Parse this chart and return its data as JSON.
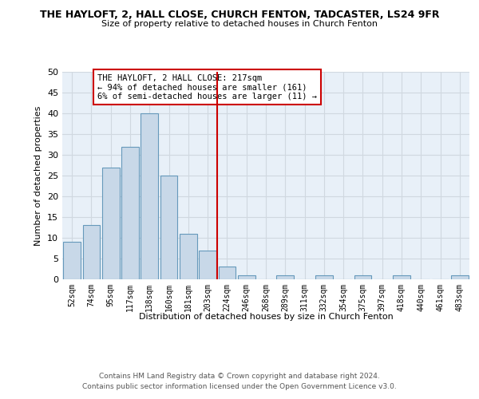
{
  "title": "THE HAYLOFT, 2, HALL CLOSE, CHURCH FENTON, TADCASTER, LS24 9FR",
  "subtitle": "Size of property relative to detached houses in Church Fenton",
  "xlabel": "Distribution of detached houses by size in Church Fenton",
  "ylabel": "Number of detached properties",
  "bar_labels": [
    "52sqm",
    "74sqm",
    "95sqm",
    "117sqm",
    "138sqm",
    "160sqm",
    "181sqm",
    "203sqm",
    "224sqm",
    "246sqm",
    "268sqm",
    "289sqm",
    "311sqm",
    "332sqm",
    "354sqm",
    "375sqm",
    "397sqm",
    "418sqm",
    "440sqm",
    "461sqm",
    "483sqm"
  ],
  "bar_values": [
    9,
    13,
    27,
    32,
    40,
    25,
    11,
    7,
    3,
    1,
    0,
    1,
    0,
    1,
    0,
    1,
    0,
    1,
    0,
    0,
    1
  ],
  "bar_color": "#c8d8e8",
  "bar_edge_color": "#6699bb",
  "grid_color": "#d0d8e0",
  "background_color": "#e8f0f8",
  "vline_color": "#cc0000",
  "annotation_text": "THE HAYLOFT, 2 HALL CLOSE: 217sqm\n← 94% of detached houses are smaller (161)\n6% of semi-detached houses are larger (11) →",
  "annotation_box_color": "#cc0000",
  "ylim": [
    0,
    50
  ],
  "yticks": [
    0,
    5,
    10,
    15,
    20,
    25,
    30,
    35,
    40,
    45,
    50
  ],
  "footer_line1": "Contains HM Land Registry data © Crown copyright and database right 2024.",
  "footer_line2": "Contains public sector information licensed under the Open Government Licence v3.0."
}
